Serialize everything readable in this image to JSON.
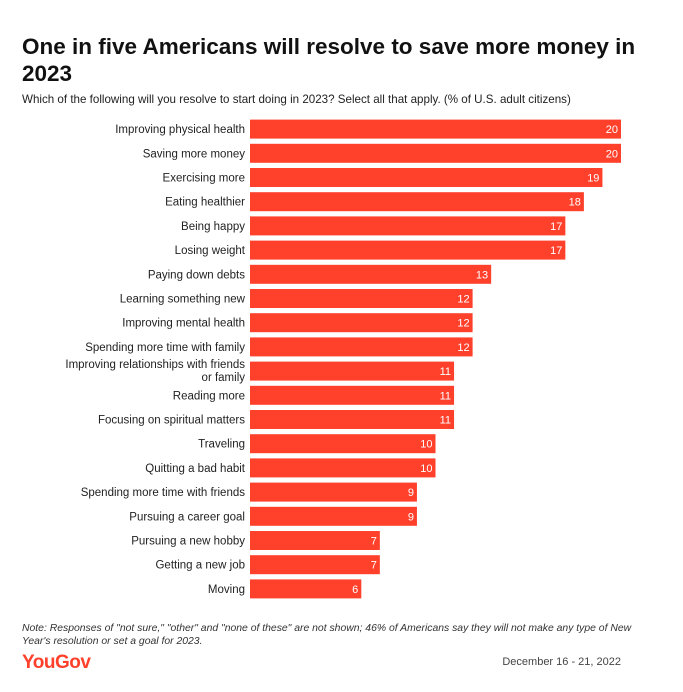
{
  "header": {
    "title": "One in five Americans will resolve to save more money in 2023",
    "subtitle": "Which of the following will you resolve to start doing in 2023? Select all that apply. (% of U.S. adult citizens)"
  },
  "footer": {
    "note": "Note: Responses of \"not sure,\" \"other\" and \"none of these\" are not shown; 46% of Americans say they will not make any type of New Year's resolution or set a goal for 2023.",
    "logo": "YouGov",
    "date": "December 16 - 21, 2022"
  },
  "colors": {
    "bar": "#ff412c",
    "bar_label": "#ffffff",
    "brand": "#ff412c"
  },
  "chart_data": {
    "type": "bar",
    "orientation": "horizontal",
    "categories": [
      "Improving physical health",
      "Saving more money",
      "Exercising more",
      "Eating healthier",
      "Being happy",
      "Losing weight",
      "Paying down debts",
      "Learning something new",
      "Improving mental health",
      "Spending more time with family",
      "Improving relationships with friends or family",
      "Reading more",
      "Focusing on spiritual matters",
      "Traveling",
      "Quitting a bad habit",
      "Spending more time with friends",
      "Pursuing a career goal",
      "Pursuing a new hobby",
      "Getting a new job",
      "Moving"
    ],
    "values": [
      20,
      20,
      19,
      18,
      17,
      17,
      13,
      12,
      12,
      12,
      11,
      11,
      11,
      10,
      10,
      9,
      9,
      7,
      7,
      6
    ],
    "title": "One in five Americans will resolve to save more money in 2023",
    "xlim": [
      0,
      20
    ],
    "grid": false,
    "data_labels": true
  }
}
